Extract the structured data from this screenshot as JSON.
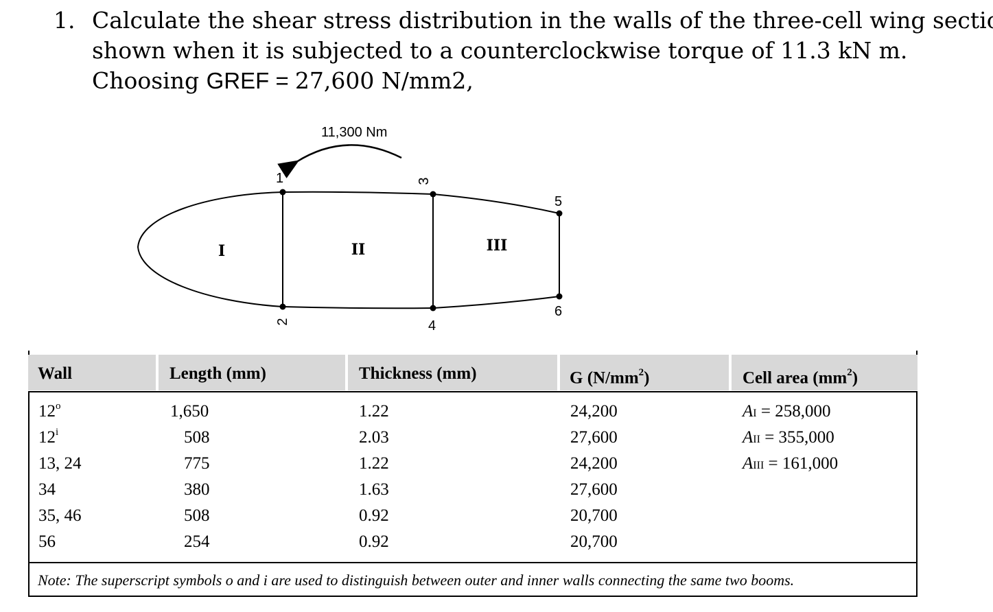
{
  "question": {
    "number": "1.",
    "line1": "Calculate the shear stress distribution in the walls of the three-cell wing section",
    "line2": "shown when it is subjected to a counterclockwise torque of 11.3 kN m.",
    "line3_a": "Choosing ",
    "line3_b": "GREF = ",
    "line3_c": "27,600 N/mm2,"
  },
  "figure": {
    "torque_label": "11,300 Nm",
    "booms": [
      "1",
      "2",
      "3",
      "4",
      "5",
      "6"
    ],
    "cells": [
      "I",
      "II",
      "III"
    ]
  },
  "table": {
    "headers": [
      "Wall",
      "Length (mm)",
      "Thickness (mm)",
      "G (N/mm",
      "Cell area (mm"
    ],
    "header_sup": "2",
    "header_close": ")",
    "rows": [
      {
        "wall": "12",
        "wall_sup": "o",
        "length": "1,650",
        "thickness": "1.22",
        "g": "24,200",
        "area_sym": "A",
        "area_sub": "I",
        "area_val": "= 258,000"
      },
      {
        "wall": "12",
        "wall_sup": "i",
        "length": "508",
        "thickness": "2.03",
        "g": "27,600",
        "area_sym": "A",
        "area_sub": "II",
        "area_val": "= 355,000"
      },
      {
        "wall": "13, 24",
        "wall_sup": "",
        "length": "775",
        "thickness": "1.22",
        "g": "24,200",
        "area_sym": "A",
        "area_sub": "III",
        "area_val": "= 161,000"
      },
      {
        "wall": "34",
        "wall_sup": "",
        "length": "380",
        "thickness": "1.63",
        "g": "27,600",
        "area_sym": "",
        "area_sub": "",
        "area_val": ""
      },
      {
        "wall": "35, 46",
        "wall_sup": "",
        "length": "508",
        "thickness": "0.92",
        "g": "20,700",
        "area_sym": "",
        "area_sub": "",
        "area_val": ""
      },
      {
        "wall": "56",
        "wall_sup": "",
        "length": "254",
        "thickness": "0.92",
        "g": "20,700",
        "area_sym": "",
        "area_sub": "",
        "area_val": ""
      }
    ],
    "note": "Note: The superscript symbols o and i are used to distinguish between outer and inner walls connecting the same two booms."
  }
}
